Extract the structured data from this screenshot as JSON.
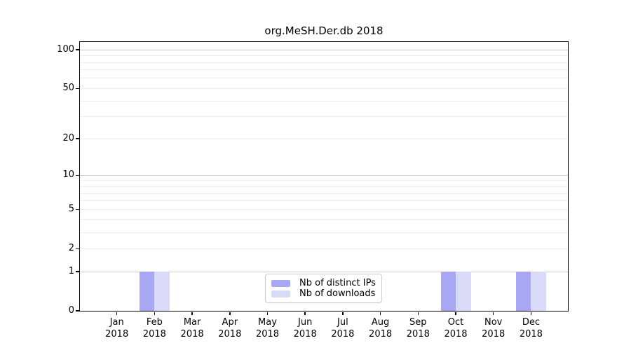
{
  "chart_data": {
    "type": "bar",
    "title": "org.MeSH.Der.db 2018",
    "categories": [
      "Jan 2018",
      "Feb 2018",
      "Mar 2018",
      "Apr 2018",
      "May 2018",
      "Jun 2018",
      "Jul 2018",
      "Aug 2018",
      "Sep 2018",
      "Oct 2018",
      "Nov 2018",
      "Dec 2018"
    ],
    "x_tick_months": [
      "Jan",
      "Feb",
      "Mar",
      "Apr",
      "May",
      "Jun",
      "Jul",
      "Aug",
      "Sep",
      "Oct",
      "Nov",
      "Dec"
    ],
    "x_tick_year": "2018",
    "series": [
      {
        "name": "Nb of distinct IPs",
        "color": "#a7a7f4",
        "values": [
          0,
          1,
          0,
          0,
          0,
          0,
          0,
          0,
          0,
          1,
          0,
          1
        ]
      },
      {
        "name": "Nb of downloads",
        "color": "#d9d9f8",
        "values": [
          0,
          1,
          0,
          0,
          0,
          0,
          0,
          0,
          0,
          1,
          0,
          1
        ]
      }
    ],
    "y_scale": "log1p",
    "ylim": [
      0,
      115
    ],
    "y_tick_values": [
      0,
      1,
      2,
      5,
      10,
      20,
      50,
      100
    ],
    "y_tick_labels": [
      "0",
      "1",
      "2",
      "5",
      "10",
      "20",
      "50",
      "100"
    ],
    "y_major_gridlines": [
      1,
      10,
      100
    ],
    "y_minor_gridlines": [
      2,
      3,
      4,
      5,
      6,
      7,
      8,
      9,
      20,
      30,
      40,
      50,
      60,
      70,
      80,
      90
    ],
    "grid": true,
    "legend_position": "lower center inside",
    "colors": {
      "grid_major": "#cccccc",
      "grid_minor": "#ededed",
      "axis": "#000000",
      "text": "#000000",
      "legend_border": "#cccccc",
      "legend_background": "#ffffff"
    }
  }
}
